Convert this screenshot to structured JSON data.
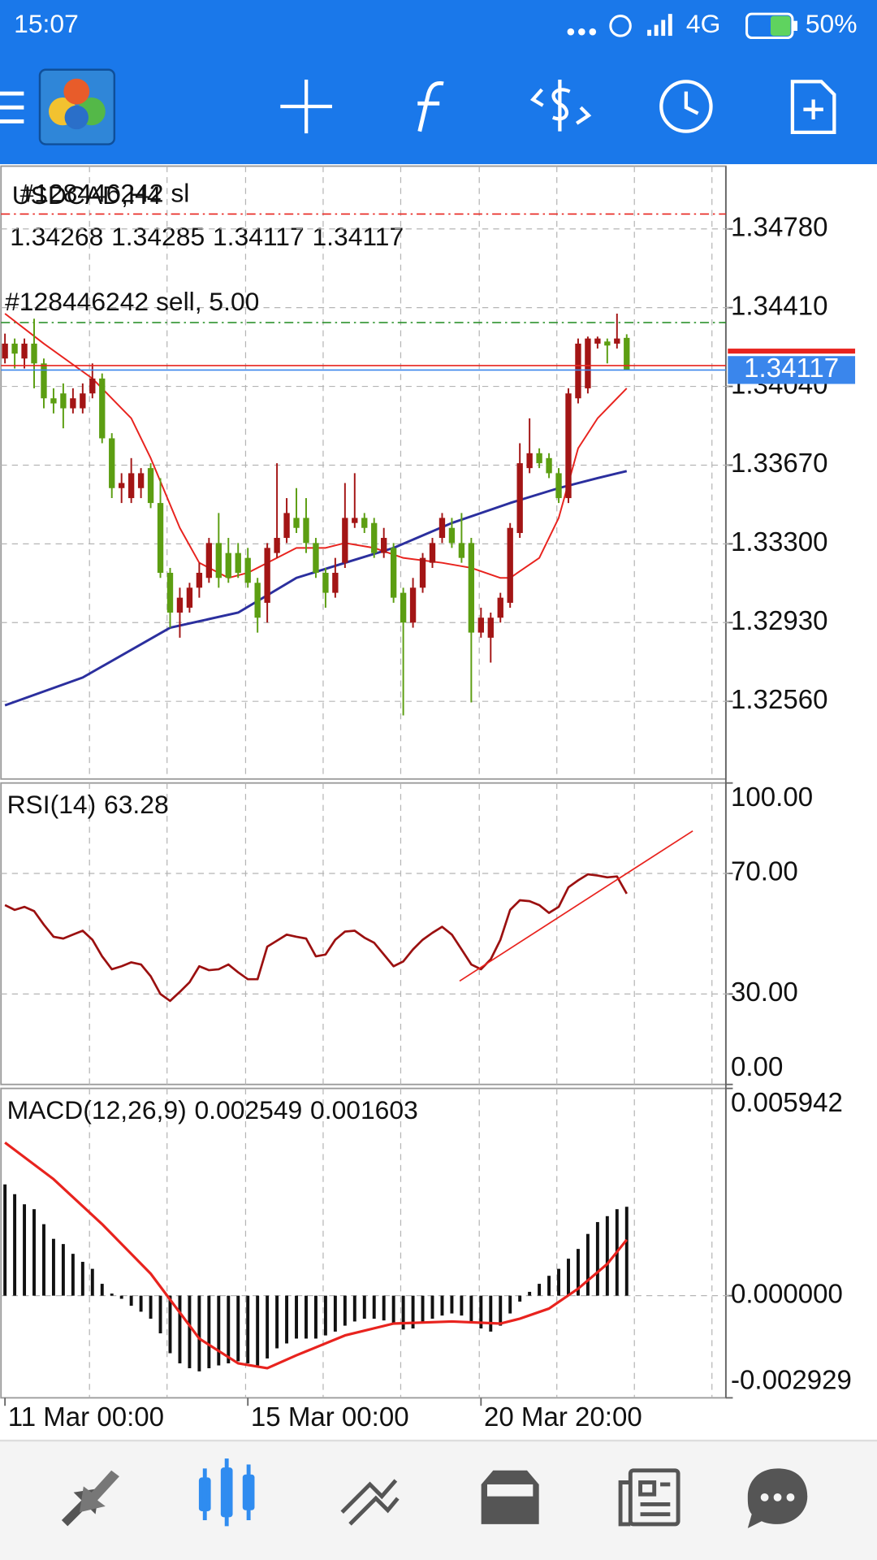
{
  "status_bar": {
    "time": "15:07",
    "network": "4G",
    "battery": "50%"
  },
  "chart_data": [
    {
      "type": "candlestick",
      "title": "USDCAD,H4",
      "categories": [
        "11 Mar 00:00",
        null,
        null,
        null,
        null,
        null,
        null,
        null,
        null,
        null,
        null,
        null,
        null,
        null,
        null,
        null,
        null,
        null,
        null,
        null,
        null,
        null,
        null,
        null,
        null,
        "15 Mar 00:00",
        null,
        null,
        null,
        null,
        null,
        null,
        null,
        null,
        null,
        null,
        null,
        null,
        null,
        null,
        null,
        null,
        null,
        null,
        null,
        null,
        null,
        null,
        null,
        "20 Mar 20:00",
        null,
        null,
        null,
        null,
        null,
        null,
        null,
        null,
        null,
        null,
        null,
        null,
        null,
        null,
        null
      ],
      "candles": [
        [
          1.34171,
          1.34288,
          1.34148,
          1.34241
        ],
        [
          1.34241,
          1.34265,
          1.34124,
          1.34194
        ],
        [
          1.34171,
          1.34265,
          1.34124,
          1.34241
        ],
        [
          1.34241,
          1.34358,
          1.34031,
          1.34148
        ],
        [
          1.34148,
          1.34171,
          1.33937,
          1.33984
        ],
        [
          1.33984,
          1.34031,
          1.33913,
          1.3396
        ],
        [
          1.34007,
          1.34054,
          1.33843,
          1.33937
        ],
        [
          1.33937,
          1.34031,
          1.33913,
          1.33984
        ],
        [
          1.33937,
          1.34054,
          1.33913,
          1.34007
        ],
        [
          1.34007,
          1.34148,
          1.33984,
          1.34077
        ],
        [
          1.34077,
          1.34101,
          1.33773,
          1.33796
        ],
        [
          1.33796,
          1.3382,
          1.33515,
          1.33562
        ],
        [
          1.33562,
          1.33632,
          1.33492,
          1.33586
        ],
        [
          1.33515,
          1.33703,
          1.33492,
          1.33632
        ],
        [
          1.33562,
          1.33656,
          1.33515,
          1.33632
        ],
        [
          1.33656,
          1.33679,
          1.33468,
          1.33492
        ],
        [
          1.33492,
          1.33609,
          1.3314,
          1.33164
        ],
        [
          1.33164,
          1.33187,
          1.32906,
          1.32977
        ],
        [
          1.32977,
          1.33094,
          1.32859,
          1.33047
        ],
        [
          1.33,
          1.33117,
          1.32977,
          1.33094
        ],
        [
          1.33094,
          1.33211,
          1.33047,
          1.33164
        ],
        [
          1.3314,
          1.33328,
          1.33117,
          1.33304
        ],
        [
          1.33304,
          1.33445,
          1.33094,
          1.3314
        ],
        [
          1.33257,
          1.33328,
          1.33117,
          1.3314
        ],
        [
          1.33257,
          1.33304,
          1.3314,
          1.33164
        ],
        [
          1.33234,
          1.33281,
          1.33094,
          1.33117
        ],
        [
          1.33117,
          1.3314,
          1.32883,
          1.32953
        ],
        [
          1.33023,
          1.33304,
          1.3293,
          1.33281
        ],
        [
          1.33257,
          1.33679,
          1.33234,
          1.33328
        ],
        [
          1.33328,
          1.33515,
          1.33304,
          1.33445
        ],
        [
          1.33422,
          1.33562,
          1.33351,
          1.33375
        ],
        [
          1.33422,
          1.33515,
          1.33257,
          1.33304
        ],
        [
          1.33304,
          1.33328,
          1.3314,
          1.33164
        ],
        [
          1.33164,
          1.33187,
          1.33,
          1.3307
        ],
        [
          1.3307,
          1.33234,
          1.33047,
          1.33164
        ],
        [
          1.33211,
          1.33586,
          1.33187,
          1.33422
        ],
        [
          1.33398,
          1.33632,
          1.33375,
          1.33422
        ],
        [
          1.33422,
          1.33445,
          1.33351,
          1.33375
        ],
        [
          1.33398,
          1.33422,
          1.33234,
          1.33257
        ],
        [
          1.33257,
          1.33375,
          1.33234,
          1.33328
        ],
        [
          1.33281,
          1.33304,
          1.33023,
          1.33047
        ],
        [
          1.3307,
          1.33094,
          1.32494,
          1.3293
        ],
        [
          1.3293,
          1.3314,
          1.32906,
          1.33094
        ],
        [
          1.33094,
          1.33257,
          1.3307,
          1.33234
        ],
        [
          1.33211,
          1.33328,
          1.33187,
          1.33304
        ],
        [
          1.33328,
          1.33445,
          1.33304,
          1.33422
        ],
        [
          1.33375,
          1.33422,
          1.33281,
          1.33304
        ],
        [
          1.33304,
          1.33445,
          1.33211,
          1.33234
        ],
        [
          1.33304,
          1.33328,
          1.32555,
          1.32883
        ],
        [
          1.32883,
          1.33,
          1.32859,
          1.32953
        ],
        [
          1.32859,
          1.32977,
          1.32742,
          1.32953
        ],
        [
          1.32953,
          1.3307,
          1.3293,
          1.33047
        ],
        [
          1.33023,
          1.33398,
          1.33,
          1.33375
        ],
        [
          1.33351,
          1.33773,
          1.33328,
          1.33679
        ],
        [
          1.33656,
          1.3389,
          1.33632,
          1.33726
        ],
        [
          1.33726,
          1.33749,
          1.33656,
          1.33679
        ],
        [
          1.33703,
          1.33726,
          1.33609,
          1.33632
        ],
        [
          1.33632,
          1.33656,
          1.33492,
          1.33515
        ],
        [
          1.33515,
          1.34031,
          1.33492,
          1.34007
        ],
        [
          1.33984,
          1.34265,
          1.3396,
          1.34241
        ],
        [
          1.34031,
          1.34274,
          1.34007,
          1.34265
        ],
        [
          1.34241,
          1.34274,
          1.34218,
          1.34265
        ],
        [
          1.34251,
          1.34265,
          1.34148,
          1.34232
        ],
        [
          1.34241,
          1.34382,
          1.34218,
          1.34265
        ],
        [
          1.34268,
          1.34285,
          1.34117,
          1.34117
        ]
      ],
      "up_color": "#a31515",
      "down_color": "#5c9e12",
      "series": [
        {
          "color": "#e8231e",
          "x": [
            0,
            4,
            9,
            13,
            15,
            18,
            20,
            23,
            25,
            28,
            30,
            33,
            35,
            38,
            41,
            45,
            48,
            51,
            52,
            55,
            57,
            59,
            61,
            64
          ],
          "values": [
            1.34382,
            1.34241,
            1.34077,
            1.3389,
            1.33703,
            1.33375,
            1.33211,
            1.3314,
            1.33164,
            1.33234,
            1.33281,
            1.33281,
            1.33304,
            1.33281,
            1.33234,
            1.33211,
            1.33187,
            1.3314,
            1.3314,
            1.33234,
            1.33422,
            1.33749,
            1.3389,
            1.34031
          ]
        },
        {
          "color": "#2b2f9e",
          "x": [
            0,
            8,
            17,
            24,
            30,
            35,
            40,
            46,
            52,
            57,
            61,
            64
          ],
          "values": [
            1.32541,
            1.32672,
            1.32906,
            1.32977,
            1.3314,
            1.33211,
            1.33281,
            1.33398,
            1.33492,
            1.33562,
            1.33609,
            1.33642
          ]
        }
      ],
      "levels": [
        {
          "name": "#128446242 sl",
          "value": 1.3485,
          "color": "#e8231e"
        },
        {
          "name": "#128446242 sell, 5.00",
          "value": 1.3434,
          "color": "#1f8a1f"
        }
      ],
      "bid": 1.34117,
      "bid_color": "#3a86ec",
      "ask": 1.34138,
      "ask_color": "#e8231e",
      "ylim": [
        1.32195,
        1.35075
      ],
      "yticks": [
        {
          "value": 1.3478,
          "label": "1.34780"
        },
        {
          "value": 1.3441,
          "label": "1.34410"
        },
        {
          "value": 1.3404,
          "label": "1.34040"
        },
        {
          "value": 1.3367,
          "label": "1.33670"
        },
        {
          "value": 1.333,
          "label": "1.33300"
        },
        {
          "value": 1.3293,
          "label": "1.32930"
        },
        {
          "value": 1.3256,
          "label": "1.32560"
        }
      ],
      "grid": true
    },
    {
      "type": "line",
      "title": "RSI(14)",
      "color": "#9b1010",
      "values": [
        59.5,
        57.9,
        58.9,
        57.5,
        53.0,
        49.0,
        48.4,
        49.7,
        51.0,
        48.0,
        42.5,
        38.2,
        39.2,
        40.5,
        39.8,
        35.9,
        30.0,
        27.7,
        30.7,
        33.9,
        39.2,
        37.9,
        38.2,
        39.8,
        37.2,
        34.9,
        34.9,
        45.7,
        47.7,
        49.7,
        49.0,
        48.4,
        42.5,
        43.1,
        48.0,
        50.7,
        51.0,
        48.7,
        47.0,
        43.1,
        39.2,
        40.8,
        44.8,
        48.0,
        50.3,
        52.3,
        49.7,
        44.8,
        39.8,
        38.2,
        41.5,
        48.0,
        57.9,
        61.1,
        60.8,
        59.5,
        56.9,
        58.9,
        65.4,
        67.7,
        69.7,
        69.3,
        68.7,
        69.0,
        63.28
      ],
      "trendline": {
        "x": [
          46.8,
          70.8
        ],
        "values": [
          34.3,
          84.1
        ],
        "color": "#e8231e"
      },
      "ylim": [
        0,
        100
      ],
      "yticks": [
        {
          "value": 100,
          "label": "100.00"
        },
        {
          "value": 70,
          "label": "70.00"
        },
        {
          "value": 30,
          "label": "30.00"
        },
        {
          "value": 0,
          "label": "0.00"
        }
      ],
      "grid": true
    },
    {
      "type": "macd",
      "title": "MACD(12,26,9)",
      "color": "#111111",
      "values": [
        0.00319,
        0.00291,
        0.00262,
        0.00248,
        0.00205,
        0.00163,
        0.00148,
        0.0012,
        0.00097,
        0.00077,
        0.00034,
        6e-05,
        -9e-05,
        -0.00029,
        -0.00046,
        -0.00066,
        -0.00108,
        -0.00165,
        -0.00194,
        -0.00208,
        -0.00217,
        -0.00208,
        -0.002,
        -0.00194,
        -0.00188,
        -0.00194,
        -0.002,
        -0.0018,
        -0.00151,
        -0.00137,
        -0.00123,
        -0.00123,
        -0.00123,
        -0.00114,
        -0.00103,
        -0.00086,
        -0.00074,
        -0.00066,
        -0.00066,
        -0.00071,
        -0.0008,
        -0.00097,
        -0.00094,
        -0.0008,
        -0.00066,
        -0.00057,
        -0.00051,
        -0.00057,
        -0.00074,
        -0.00094,
        -0.00103,
        -0.00086,
        -0.00051,
        -0.00017,
        0.00011,
        0.00034,
        0.00057,
        0.00077,
        0.00106,
        0.00134,
        0.00177,
        0.00211,
        0.00228,
        0.00248,
        0.002549
      ],
      "series": [
        {
          "color": "#e8231e",
          "x": [
            0,
            5,
            10,
            15,
            20,
            24,
            27,
            30,
            35,
            40,
            46,
            51,
            53,
            56,
            59,
            62,
            64
          ],
          "values": [
            0.00439,
            0.00334,
            0.00205,
            0.00063,
            -0.00123,
            -0.00194,
            -0.00208,
            -0.00171,
            -0.00114,
            -0.0008,
            -0.00074,
            -0.0008,
            -0.00066,
            -0.00037,
            0.0002,
            0.00091,
            0.001603
          ]
        }
      ],
      "ylim": [
        -0.002929,
        0.005942
      ],
      "yticks": [
        0.005942,
        {
          "value": 0,
          "label": "0.000000"
        },
        -0.002929
      ],
      "grid": true
    }
  ]
}
